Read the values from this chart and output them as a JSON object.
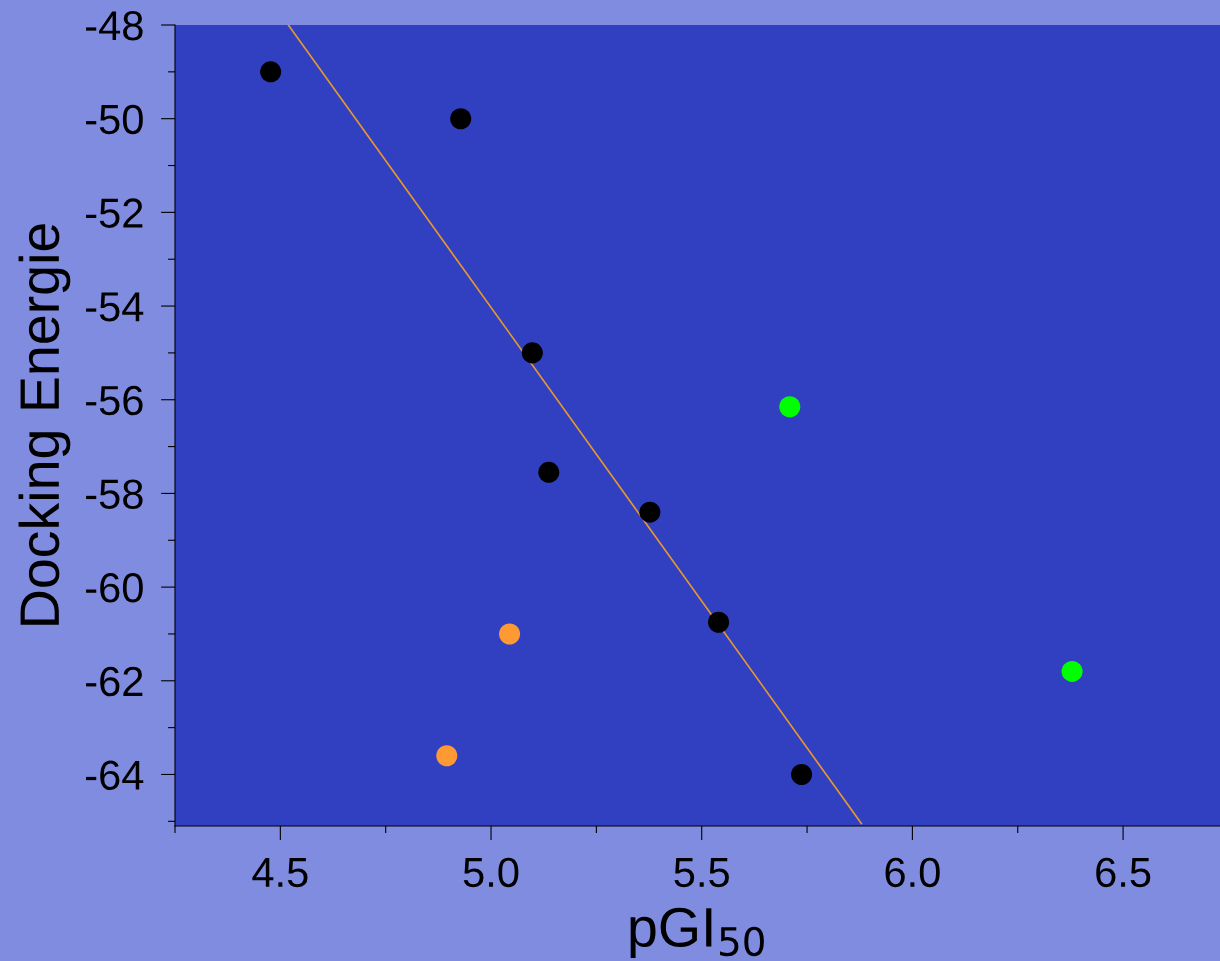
{
  "chart_data": {
    "type": "scatter",
    "xlabel": "pGI$_{50}$",
    "ylabel": "Docking Energie",
    "xlim": [
      4.25,
      6.73
    ],
    "ylim": [
      -65.1,
      -48
    ],
    "xticks": [
      {
        "value": 4.25,
        "label": null
      },
      4.5,
      {
        "value": 4.75,
        "label": null
      },
      {
        "value": 5.0,
        "label": "5.0"
      },
      {
        "value": 5.25,
        "label": null
      },
      5.5,
      {
        "value": 5.75,
        "label": null
      },
      {
        "value": 6.0,
        "label": "6.0"
      },
      {
        "value": 6.25,
        "label": null
      },
      6.5
    ],
    "yticks": [
      {
        "value": -65,
        "label": null
      },
      -64,
      {
        "value": -63,
        "label": null
      },
      -62,
      {
        "value": -61,
        "label": null
      },
      -60,
      {
        "value": -59,
        "label": null
      },
      -58,
      {
        "value": -57,
        "label": null
      },
      -56,
      {
        "value": -55,
        "label": null
      },
      -54,
      {
        "value": -53,
        "label": null
      },
      -52,
      {
        "value": -51,
        "label": null
      },
      -50,
      {
        "value": -49,
        "label": null
      },
      -48
    ],
    "grid": false,
    "legend": false,
    "marker": "circle",
    "series": [
      {
        "color": "#000000",
        "x": [
          4.477,
          4.928,
          5.098,
          5.137,
          5.377,
          5.54,
          5.737
        ],
        "values": [
          -49.0,
          -50.0,
          -55.0,
          -57.55,
          -58.4,
          -60.75,
          -64.0
        ]
      },
      {
        "color": "#ff9933",
        "x": [
          5.044,
          4.895
        ],
        "values": [
          -61.0,
          -63.6
        ]
      },
      {
        "color": "#00ff00",
        "x": [
          5.709,
          6.379
        ],
        "values": [
          -56.15,
          -61.8
        ]
      },
      {
        "type": "line",
        "color": "#e8962e",
        "marker": "none",
        "x": [
          4.519,
          5.879
        ],
        "values": [
          -48.0,
          -65.05
        ]
      }
    ]
  }
}
